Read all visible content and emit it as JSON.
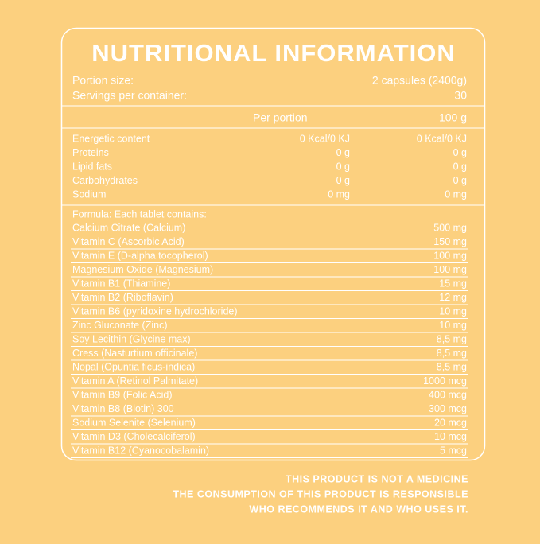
{
  "title": "NUTRITIONAL INFORMATION",
  "portion": [
    {
      "label": "Portion size:",
      "value": "2 capsules (2400g)"
    },
    {
      "label": "Servings per container:",
      "value": "30"
    }
  ],
  "columns": [
    "Per portion",
    "100 g"
  ],
  "nutrients": [
    [
      "Energetic content",
      "0 Kcal/0 KJ",
      "0 Kcal/0 KJ"
    ],
    [
      "Proteins",
      "0 g",
      "0 g"
    ],
    [
      "Lipid fats",
      "0 g",
      "0 g"
    ],
    [
      "Carbohydrates",
      "0 g",
      "0 g"
    ],
    [
      "Sodium",
      "0 mg",
      "0 mg"
    ]
  ],
  "formula_heading": "Formula: Each tablet contains:",
  "formula": [
    [
      "Calcium Citrate (Calcium)",
      "500 mg"
    ],
    [
      "Vitamin C (Ascorbic Acid)",
      "150 mg"
    ],
    [
      "Vitamin E (D-alpha tocopherol)",
      "100 mg"
    ],
    [
      "Magnesium Oxide (Magnesium)",
      "100 mg"
    ],
    [
      "Vitamin B1 (Thiamine)",
      "15 mg"
    ],
    [
      "Vitamin B2 (Riboflavin)",
      "12 mg"
    ],
    [
      "Vitamin B6 (pyridoxine hydrochloride)",
      "10 mg"
    ],
    [
      "Zinc Gluconate (Zinc)",
      "10 mg"
    ],
    [
      "Soy Lecithin (Glycine max)",
      "8,5 mg"
    ],
    [
      "Cress (Nasturtium officinale)",
      "8,5 mg"
    ],
    [
      "Nopal (Opuntia ficus-indica)",
      "8,5 mg"
    ],
    [
      "Vitamin A (Retinol Palmitate)",
      "1000 mcg"
    ],
    [
      "Vitamin B9 (Folic Acid)",
      "400 mcg"
    ],
    [
      "Vitamin B8 (Biotin) 300",
      "300 mcg"
    ],
    [
      "Sodium Selenite (Selenium)",
      "20 mcg"
    ],
    [
      "Vitamin D3 (Cholecalciferol)",
      "10 mcg"
    ],
    [
      "Vitamin B12 (Cyanocobalamin)",
      "5 mcg"
    ]
  ],
  "disclaimer": [
    "THIS PRODUCT IS NOT A MEDICINE",
    "THE CONSUMPTION OF THIS PRODUCT IS RESPONSIBLE",
    "WHO RECOMMENDS IT AND WHO USES IT."
  ]
}
